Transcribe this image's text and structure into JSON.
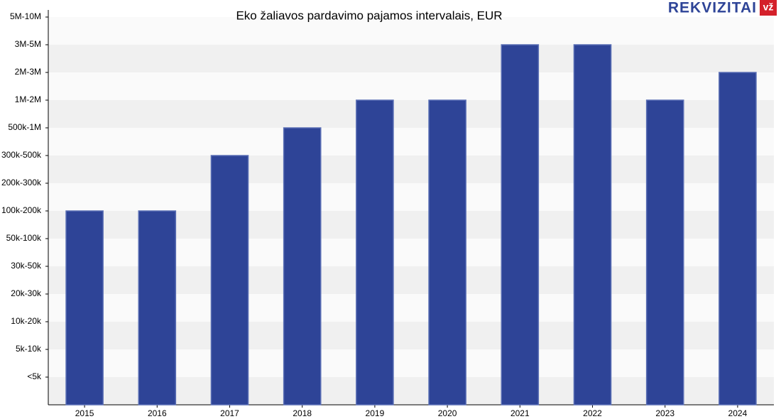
{
  "chart_data": {
    "type": "bar",
    "title": "Eko žaliavos pardavimo pajamos intervalais, EUR",
    "logo": {
      "text": "REKVIZITAI",
      "badge": "vž"
    },
    "categories": [
      "2015",
      "2016",
      "2017",
      "2018",
      "2019",
      "2020",
      "2021",
      "2022",
      "2023",
      "2024"
    ],
    "values": [
      7,
      7,
      9,
      10,
      11,
      11,
      13,
      13,
      11,
      12
    ],
    "color": "#2e4497",
    "ylim": [
      0,
      14
    ],
    "yticks": [
      {
        "value": 1,
        "label": "<5k"
      },
      {
        "value": 2,
        "label": "5k-10k"
      },
      {
        "value": 3,
        "label": "10k-20k"
      },
      {
        "value": 4,
        "label": "20k-30k"
      },
      {
        "value": 5,
        "label": "30k-50k"
      },
      {
        "value": 6,
        "label": "50k-100k"
      },
      {
        "value": 7,
        "label": "100k-200k"
      },
      {
        "value": 8,
        "label": "200k-300k"
      },
      {
        "value": 9,
        "label": "300k-500k"
      },
      {
        "value": 10,
        "label": "500k-1M"
      },
      {
        "value": 11,
        "label": "1M-2M"
      },
      {
        "value": 12,
        "label": "2M-3M"
      },
      {
        "value": 13,
        "label": "3M-5M"
      },
      {
        "value": 14,
        "label": "5M-10M"
      }
    ],
    "grid": true
  }
}
